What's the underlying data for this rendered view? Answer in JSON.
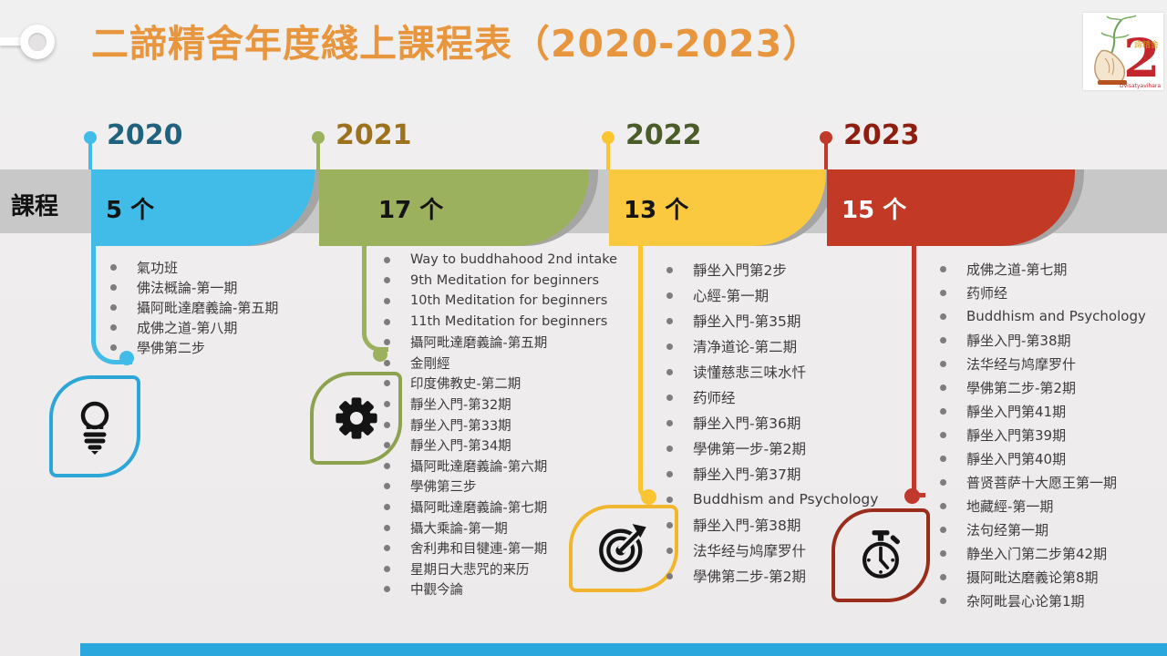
{
  "title": "二諦精舍年度綫上課程表（2020-2023）",
  "side_label": "課程",
  "logo": {
    "number": "2",
    "seal_text": "諦精舍",
    "caption": "Dvisatyavihara"
  },
  "palette": {
    "title_orange": "#E8963E",
    "band_gray": "#C9C8C8",
    "bottom_bar_blue": "#2AA7DC",
    "year_2020": {
      "block": "#41BCE8",
      "header_text": "#20617E",
      "accent": "#41BCE8",
      "leaf_border": "#2BA6D6"
    },
    "year_2021": {
      "block": "#9BB15D",
      "header_text": "#9C731C",
      "accent": "#9BB15D",
      "leaf_border": "#8CA24E"
    },
    "year_2022": {
      "block": "#FBC940",
      "header_text": "#4A5C28",
      "accent": "#FBC431",
      "leaf_border": "#F2B52E"
    },
    "year_2023": {
      "block": "#C23A26",
      "header_text": "#8E1F10",
      "accent": "#C0392B",
      "leaf_border": "#992C1B"
    }
  },
  "columns": [
    {
      "year": "2020",
      "count": "5 个",
      "icon": "lightbulb-icon",
      "courses": [
        "氣功班",
        "佛法概論-第一期",
        "攝阿毗達磨義論-第五期",
        "成佛之道-第八期",
        "學佛第二步"
      ]
    },
    {
      "year": "2021",
      "count": "17 个",
      "icon": "gear-icon",
      "courses": [
        "Way to buddhahood 2nd intake",
        "9th Meditation for beginners",
        "10th Meditation for beginners",
        "11th Meditation for beginners",
        "攝阿毗達磨義論-第五期",
        "金剛經",
        "印度佛教史-第二期",
        "靜坐入門-第32期",
        "靜坐入門-第33期",
        "靜坐入門-第34期",
        "攝阿毗達磨義論-第六期",
        "學佛第三步",
        "攝阿毗達磨義論-第七期",
        "攝大乘論-第一期",
        "舍利弗和目犍連-第一期",
        "星期日大悲咒的来历",
        "中觀今論"
      ]
    },
    {
      "year": "2022",
      "count": "13 个",
      "icon": "target-icon",
      "courses": [
        "靜坐入門第2步",
        "心經-第一期",
        "靜坐入門-第35期",
        "清净道论-第二期",
        "读懂慈悲三味水忏",
        "药师经",
        "靜坐入門-第36期",
        "學佛第一步-第2期",
        "靜坐入門-第37期",
        "Buddhism and Psychology",
        "靜坐入門-第38期",
        "法华经与鸠摩罗什",
        "學佛第二步-第2期"
      ]
    },
    {
      "year": "2023",
      "count": "15 个",
      "icon": "stopwatch-icon",
      "courses": [
        "成佛之道-第七期",
        "药师经",
        "Buddhism and Psychology",
        "靜坐入門-第38期",
        "法华经与鸠摩罗什",
        "學佛第二步-第2期",
        "靜坐入門第41期",
        "靜坐入門第39期",
        "靜坐入門第40期",
        "普贤菩萨十大愿王第一期",
        "地藏經-第一期",
        "法句经第一期",
        "静坐入门第二步第42期",
        "摄阿毗达磨義论第8期",
        "杂阿毗昙心论第1期"
      ]
    }
  ]
}
